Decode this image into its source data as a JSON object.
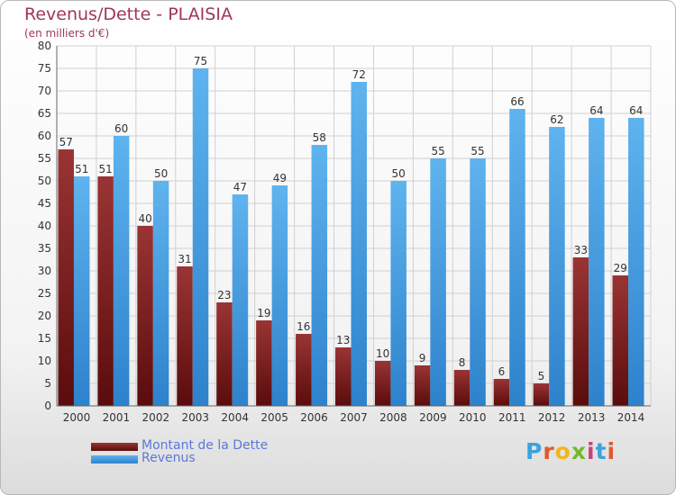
{
  "header": {
    "title": "Revenus/Dette - PLAISIA",
    "subtitle": "(en milliers d'€)"
  },
  "legend": {
    "debt_label": "Montant de la Dette",
    "revenue_label": "Revenus"
  },
  "logo": {
    "text": "Proxiti",
    "colors": [
      "#3aa3df",
      "#e05a2a",
      "#f2b619",
      "#77b82a",
      "#c7427b",
      "#3aa3df",
      "#e05a2a"
    ]
  },
  "colors": {
    "debt": "#7a1c1c",
    "revenue": "#4aa0e4",
    "grid": "#d0d0d0",
    "axis_text": "#333333"
  },
  "chart_data": {
    "type": "bar",
    "title": "Revenus/Dette - PLAISIA",
    "subtitle": "(en milliers d'€)",
    "categories": [
      "2000",
      "2001",
      "2002",
      "2003",
      "2004",
      "2005",
      "2006",
      "2007",
      "2008",
      "2009",
      "2010",
      "2011",
      "2012",
      "2013",
      "2014"
    ],
    "series": [
      {
        "name": "Montant de la Dette",
        "values": [
          57,
          51,
          40,
          31,
          23,
          19,
          16,
          13,
          10,
          9,
          8,
          6,
          5,
          33,
          29
        ]
      },
      {
        "name": "Revenus",
        "values": [
          51,
          60,
          50,
          75,
          47,
          49,
          58,
          72,
          50,
          55,
          55,
          66,
          62,
          64,
          64
        ]
      }
    ],
    "ylim": [
      0,
      80
    ],
    "yticks": [
      0,
      5,
      10,
      15,
      20,
      25,
      30,
      35,
      40,
      45,
      50,
      55,
      60,
      65,
      70,
      75,
      80
    ],
    "grid": true,
    "legend_position": "bottom-left"
  }
}
